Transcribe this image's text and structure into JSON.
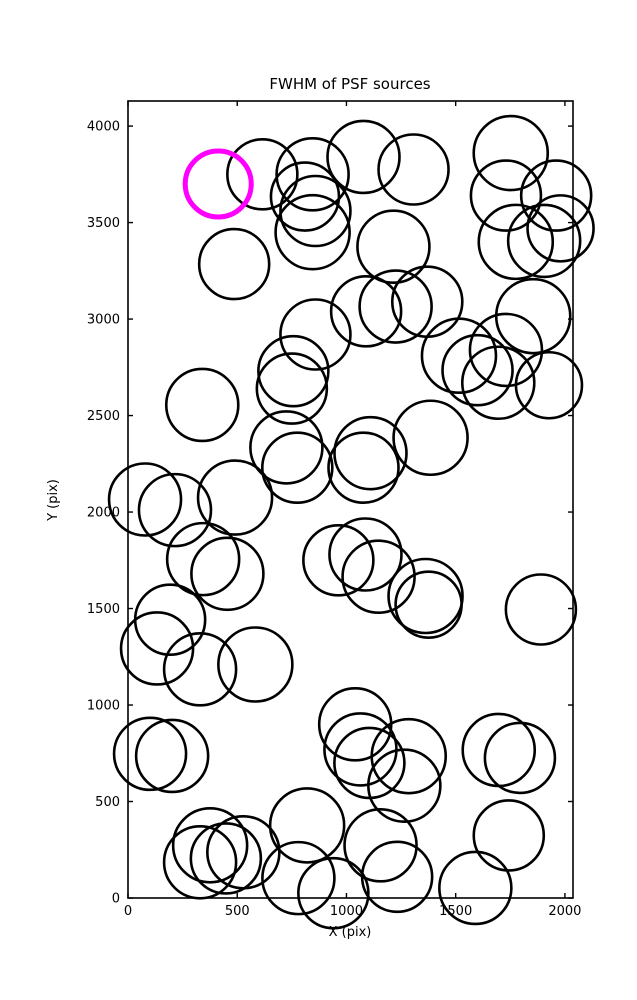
{
  "chart_data": {
    "type": "scatter",
    "title": "FWHM of PSF sources",
    "xlabel": "X (pix)",
    "ylabel": "Y (pix)",
    "xlim": [
      0,
      2037
    ],
    "ylim": [
      0,
      4130
    ],
    "x_ticks": [
      0,
      500,
      1000,
      1500,
      2000
    ],
    "y_ticks": [
      0,
      500,
      1000,
      1500,
      2000,
      2500,
      3000,
      3500,
      4000
    ],
    "grid": false,
    "legend": "none",
    "marker_style": "open-circle",
    "marker_color": "#000000",
    "highlight_color": "#ff00ff",
    "highlight_point": {
      "x": 413,
      "y": 3700,
      "r": 33
    },
    "points": [
      {
        "x": 615,
        "y": 3750,
        "r": 35
      },
      {
        "x": 1078,
        "y": 3840,
        "r": 36
      },
      {
        "x": 1307,
        "y": 3775,
        "r": 35
      },
      {
        "x": 1752,
        "y": 3860,
        "r": 37
      },
      {
        "x": 1730,
        "y": 3640,
        "r": 35
      },
      {
        "x": 1960,
        "y": 3640,
        "r": 35
      },
      {
        "x": 1980,
        "y": 3470,
        "r": 33
      },
      {
        "x": 1905,
        "y": 3405,
        "r": 36
      },
      {
        "x": 1775,
        "y": 3400,
        "r": 37
      },
      {
        "x": 845,
        "y": 3750,
        "r": 36
      },
      {
        "x": 810,
        "y": 3635,
        "r": 34
      },
      {
        "x": 858,
        "y": 3560,
        "r": 35
      },
      {
        "x": 845,
        "y": 3450,
        "r": 37
      },
      {
        "x": 486,
        "y": 3285,
        "r": 35
      },
      {
        "x": 1215,
        "y": 3375,
        "r": 36
      },
      {
        "x": 1090,
        "y": 3040,
        "r": 35
      },
      {
        "x": 1225,
        "y": 3065,
        "r": 36
      },
      {
        "x": 1370,
        "y": 3090,
        "r": 35
      },
      {
        "x": 858,
        "y": 2920,
        "r": 35
      },
      {
        "x": 1855,
        "y": 3015,
        "r": 37
      },
      {
        "x": 1730,
        "y": 2840,
        "r": 36
      },
      {
        "x": 1515,
        "y": 2810,
        "r": 37
      },
      {
        "x": 1600,
        "y": 2735,
        "r": 35
      },
      {
        "x": 1695,
        "y": 2670,
        "r": 36
      },
      {
        "x": 1927,
        "y": 2657,
        "r": 33
      },
      {
        "x": 340,
        "y": 2555,
        "r": 36
      },
      {
        "x": 757,
        "y": 2730,
        "r": 35
      },
      {
        "x": 750,
        "y": 2640,
        "r": 35
      },
      {
        "x": 725,
        "y": 2335,
        "r": 36
      },
      {
        "x": 775,
        "y": 2230,
        "r": 35
      },
      {
        "x": 490,
        "y": 2075,
        "r": 37
      },
      {
        "x": 1110,
        "y": 2305,
        "r": 36
      },
      {
        "x": 1078,
        "y": 2230,
        "r": 35
      },
      {
        "x": 1385,
        "y": 2385,
        "r": 37
      },
      {
        "x": 78,
        "y": 2065,
        "r": 36
      },
      {
        "x": 215,
        "y": 2010,
        "r": 36
      },
      {
        "x": 344,
        "y": 1756,
        "r": 36
      },
      {
        "x": 455,
        "y": 1680,
        "r": 36
      },
      {
        "x": 963,
        "y": 1750,
        "r": 35
      },
      {
        "x": 1087,
        "y": 1780,
        "r": 36
      },
      {
        "x": 1147,
        "y": 1665,
        "r": 36
      },
      {
        "x": 1362,
        "y": 1565,
        "r": 37
      },
      {
        "x": 1376,
        "y": 1520,
        "r": 33
      },
      {
        "x": 1890,
        "y": 1495,
        "r": 35
      },
      {
        "x": 133,
        "y": 1293,
        "r": 36
      },
      {
        "x": 193,
        "y": 1442,
        "r": 35
      },
      {
        "x": 330,
        "y": 1185,
        "r": 36
      },
      {
        "x": 583,
        "y": 1210,
        "r": 37
      },
      {
        "x": 101,
        "y": 747,
        "r": 36
      },
      {
        "x": 202,
        "y": 736,
        "r": 36
      },
      {
        "x": 1040,
        "y": 900,
        "r": 36
      },
      {
        "x": 1064,
        "y": 770,
        "r": 36
      },
      {
        "x": 1105,
        "y": 700,
        "r": 35
      },
      {
        "x": 1285,
        "y": 735,
        "r": 37
      },
      {
        "x": 1265,
        "y": 582,
        "r": 36
      },
      {
        "x": 1697,
        "y": 767,
        "r": 36
      },
      {
        "x": 1794,
        "y": 726,
        "r": 35
      },
      {
        "x": 376,
        "y": 273,
        "r": 37
      },
      {
        "x": 528,
        "y": 237,
        "r": 36
      },
      {
        "x": 330,
        "y": 185,
        "r": 36
      },
      {
        "x": 448,
        "y": 205,
        "r": 35
      },
      {
        "x": 820,
        "y": 376,
        "r": 37
      },
      {
        "x": 780,
        "y": 103,
        "r": 36
      },
      {
        "x": 940,
        "y": 25,
        "r": 35
      },
      {
        "x": 1156,
        "y": 273,
        "r": 36
      },
      {
        "x": 1232,
        "y": 110,
        "r": 35
      },
      {
        "x": 1590,
        "y": 52,
        "r": 36
      },
      {
        "x": 1743,
        "y": 324,
        "r": 35
      }
    ]
  }
}
